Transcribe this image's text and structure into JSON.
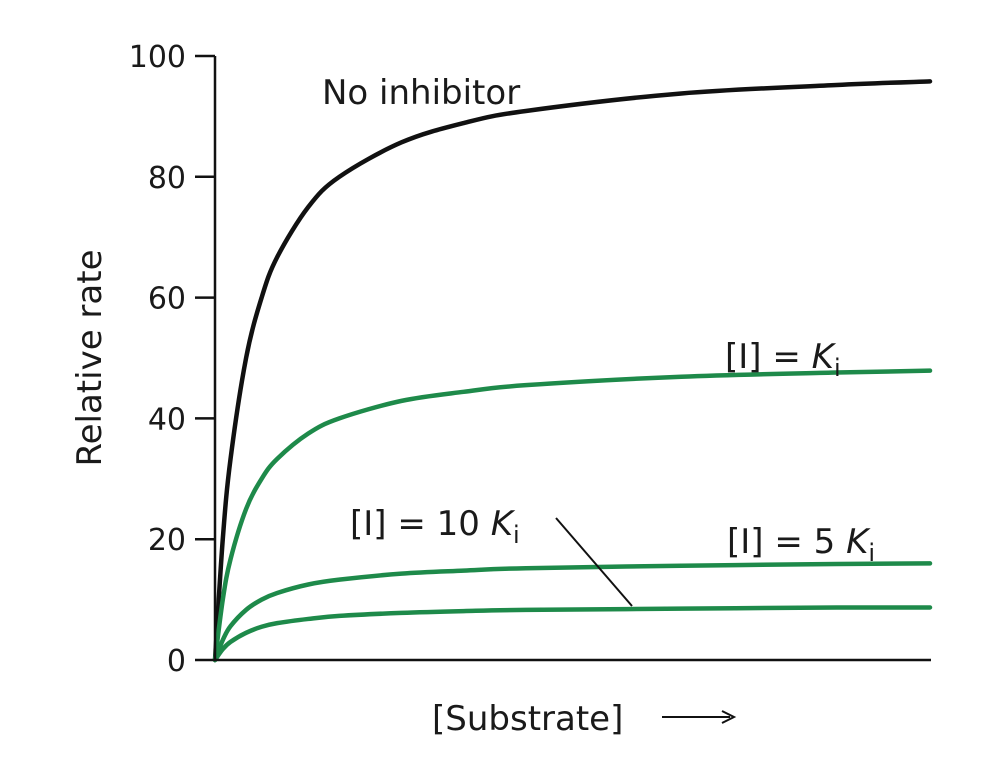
{
  "chart_data": {
    "type": "line",
    "title": "",
    "xlabel": "[Substrate]",
    "xlabel_arrow": "→",
    "ylabel": "Relative rate",
    "ylim": [
      0,
      100
    ],
    "yticks": [
      "0",
      "20",
      "40",
      "60",
      "80",
      "100"
    ],
    "grid": false,
    "x": [
      0,
      0.25,
      0.5,
      1,
      1.5,
      2,
      3,
      4,
      6,
      8,
      10,
      15,
      20,
      23
    ],
    "series": [
      {
        "name": "No inhibitor",
        "color": "#111111",
        "label": {
          "prefix": "No inhibitor",
          "var": "",
          "sub": ""
        },
        "values": [
          0,
          20,
          33.3,
          50,
          60,
          66.7,
          75,
          80,
          85.7,
          88.9,
          90.9,
          93.8,
          95.2,
          95.8
        ]
      },
      {
        "name": "[I] = Ki",
        "color": "#1e8a4a",
        "label": {
          "prefix": "[I] = ",
          "var": "K",
          "sub": "i"
        },
        "values": [
          0,
          10,
          16.7,
          25,
          30,
          33.3,
          37.5,
          40,
          42.9,
          44.4,
          45.5,
          46.9,
          47.6,
          47.9
        ]
      },
      {
        "name": "[I] = 5 Ki",
        "color": "#1e8a4a",
        "label": {
          "prefix": "[I] = 5 ",
          "var": "K",
          "sub": "i"
        },
        "values": [
          0,
          3.3,
          5.6,
          8.3,
          10,
          11.1,
          12.5,
          13.3,
          14.3,
          14.8,
          15.2,
          15.6,
          15.9,
          16.0
        ]
      },
      {
        "name": "[I] = 10 Ki",
        "color": "#1e8a4a",
        "label": {
          "prefix": "[I] = 10 ",
          "var": "K",
          "sub": "i"
        },
        "values": [
          0,
          1.8,
          3.0,
          4.5,
          5.5,
          6.1,
          6.8,
          7.3,
          7.8,
          8.1,
          8.3,
          8.5,
          8.7,
          8.7
        ]
      }
    ]
  }
}
